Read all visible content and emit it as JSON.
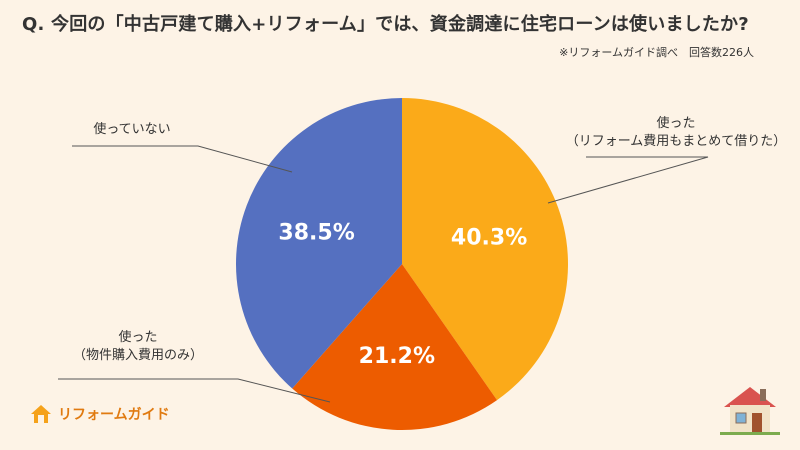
{
  "title": "Q. 今回の「中古戸建て購入+リフォーム」では、資金調達に住宅ローンは使いましたか?",
  "source_note": "※リフォームガイド調べ　回答数226人",
  "brand": {
    "logo_text": "リフォームガイド"
  },
  "colors": {
    "background": "#fdf3e6",
    "orange_light": "#fbaa19",
    "orange_dark": "#ed5c00",
    "blue": "#5570c0",
    "brand": "#e07a10"
  },
  "chart_data": {
    "type": "pie",
    "slices": [
      {
        "label_lines": [
          "使った",
          "（リフォーム費用もまとめて借りた）"
        ],
        "value": 40.3,
        "value_label": "40.3%",
        "color": "#fbaa19"
      },
      {
        "label_lines": [
          "使った",
          "（物件購入費用のみ）"
        ],
        "value": 21.2,
        "value_label": "21.2%",
        "color": "#ed5c00"
      },
      {
        "label_lines": [
          "使っていない"
        ],
        "value": 38.5,
        "value_label": "38.5%",
        "color": "#5570c0"
      }
    ]
  }
}
